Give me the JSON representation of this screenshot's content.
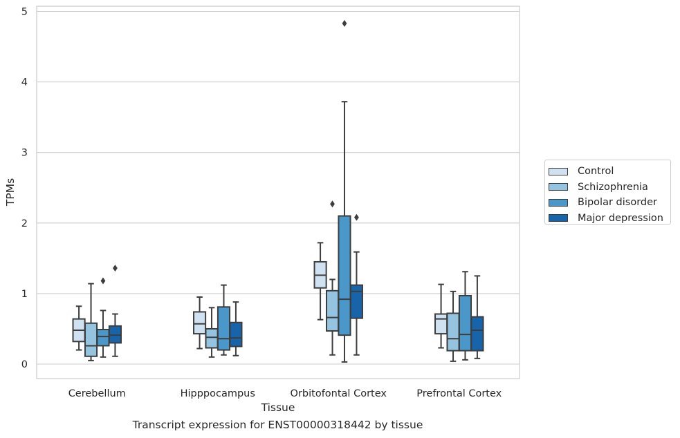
{
  "chart_data": {
    "type": "box",
    "xlabel": "Tissue",
    "ylabel": "TPMs",
    "caption": "Transcript expression for ENST00000318442 by tissue",
    "ylim": [
      -0.2,
      5.1
    ],
    "yticks": [
      0,
      1,
      2,
      3,
      4,
      5
    ],
    "grid": "horizontal",
    "legend_position": "right",
    "categories": [
      "Cerebellum",
      "Hipppocampus",
      "Orbitofontal Cortex",
      "Prefrontal Cortex"
    ],
    "series": [
      {
        "name": "Control",
        "color": "#d0e1f2",
        "boxes": [
          {
            "whislo": 0.2,
            "q1": 0.32,
            "med": 0.48,
            "q3": 0.64,
            "whishi": 0.82,
            "fliers": []
          },
          {
            "whislo": 0.22,
            "q1": 0.43,
            "med": 0.57,
            "q3": 0.74,
            "whishi": 0.95,
            "fliers": []
          },
          {
            "whislo": 0.63,
            "q1": 1.08,
            "med": 1.26,
            "q3": 1.45,
            "whishi": 1.72,
            "fliers": []
          },
          {
            "whislo": 0.23,
            "q1": 0.43,
            "med": 0.64,
            "q3": 0.71,
            "whishi": 1.13,
            "fliers": []
          }
        ]
      },
      {
        "name": "Schizophrenia",
        "color": "#94c4df",
        "boxes": [
          {
            "whislo": 0.05,
            "q1": 0.11,
            "med": 0.26,
            "q3": 0.58,
            "whishi": 1.14,
            "fliers": []
          },
          {
            "whislo": 0.1,
            "q1": 0.23,
            "med": 0.38,
            "q3": 0.5,
            "whishi": 0.8,
            "fliers": []
          },
          {
            "whislo": 0.13,
            "q1": 0.47,
            "med": 0.66,
            "q3": 1.04,
            "whishi": 1.2,
            "fliers": [
              2.27
            ]
          },
          {
            "whislo": 0.04,
            "q1": 0.19,
            "med": 0.36,
            "q3": 0.72,
            "whishi": 1.03,
            "fliers": []
          }
        ]
      },
      {
        "name": "Bipolar disorder",
        "color": "#4a98c9",
        "boxes": [
          {
            "whislo": 0.1,
            "q1": 0.26,
            "med": 0.39,
            "q3": 0.49,
            "whishi": 0.76,
            "fliers": [
              1.18
            ]
          },
          {
            "whislo": 0.13,
            "q1": 0.2,
            "med": 0.36,
            "q3": 0.81,
            "whishi": 1.12,
            "fliers": []
          },
          {
            "whislo": 0.03,
            "q1": 0.41,
            "med": 0.92,
            "q3": 2.1,
            "whishi": 3.72,
            "fliers": [
              4.83
            ]
          },
          {
            "whislo": 0.06,
            "q1": 0.19,
            "med": 0.42,
            "q3": 0.97,
            "whishi": 1.31,
            "fliers": []
          }
        ]
      },
      {
        "name": "Major depression",
        "color": "#1764ab",
        "boxes": [
          {
            "whislo": 0.11,
            "q1": 0.3,
            "med": 0.41,
            "q3": 0.54,
            "whishi": 0.71,
            "fliers": [
              1.36
            ]
          },
          {
            "whislo": 0.12,
            "q1": 0.25,
            "med": 0.37,
            "q3": 0.59,
            "whishi": 0.88,
            "fliers": []
          },
          {
            "whislo": 0.13,
            "q1": 0.65,
            "med": 1.03,
            "q3": 1.12,
            "whishi": 1.59,
            "fliers": [
              2.08
            ]
          },
          {
            "whislo": 0.08,
            "q1": 0.19,
            "med": 0.48,
            "q3": 0.67,
            "whishi": 1.25,
            "fliers": []
          }
        ]
      }
    ]
  }
}
